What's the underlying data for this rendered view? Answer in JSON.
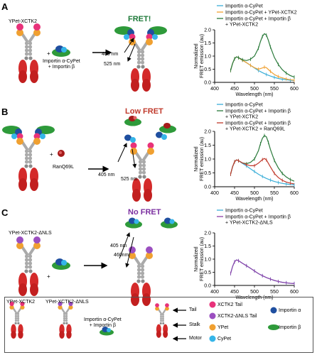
{
  "panels": {
    "A": {
      "letter": "A",
      "construct": "YPet-XCTK2",
      "protein": "Importin α-CyPet\n+ Importin β",
      "plus": "+",
      "title": "FRET!",
      "title_color": "#1f7a3a",
      "ex": "405 nm",
      "em": "525 nm"
    },
    "B": {
      "letter": "B",
      "plus": "+",
      "ran": "RanQ69L",
      "title": "Low FRET",
      "title_color": "#c0392b",
      "ex": "405 nm",
      "em": "525 nm"
    },
    "C": {
      "letter": "C",
      "construct": "YPet-XCTK2-ΔNLS",
      "plus": "+",
      "title": "No FRET",
      "title_color": "#7b2fa0",
      "ex": "405 nm",
      "em": "460nm"
    }
  },
  "key": {
    "col1": "YPet-XCTK2",
    "col2": "YPet-XCTK2-ΔNLS",
    "protein": "Importin α-CyPet\n+ Importin β",
    "parts": [
      "Tail",
      "Stalk",
      "Motor"
    ],
    "items": [
      {
        "label": "XCTK2 Tail",
        "color": "#e8327a"
      },
      {
        "label": "XCTK2-ΔNLS Tail",
        "color": "#9b4fc0"
      },
      {
        "label": "YPet",
        "color": "#f0a030"
      },
      {
        "label": "CyPet",
        "color": "#35b5e8"
      },
      {
        "label": "Importin α",
        "color": "#1f4fa0"
      },
      {
        "label": "Importin β",
        "color": "#2e9a3a"
      }
    ]
  },
  "chart_data": [
    {
      "type": "line",
      "xlabel": "Wavelength (nm)",
      "ylabel": "Normalized\nFRET emission (au)",
      "xlim": [
        400,
        600
      ],
      "ylim": [
        0,
        2
      ],
      "xticks": [
        400,
        450,
        500,
        550,
        600
      ],
      "yticks": [
        0.0,
        0.5,
        1.0,
        1.5,
        2.0
      ],
      "ytick_labels": [
        "0.0",
        "0.5",
        "1.0",
        "1.5",
        "2.0"
      ],
      "legend": [
        "Importin α-CyPet",
        "Importin α-CyPet + YPet-XCTK2",
        "Importin α-CyPet + Importin β\n+ YPet-XCTK2"
      ],
      "series": [
        {
          "name": "Importin α-CyPet",
          "color": "#3aaed8",
          "x": [
            440,
            445,
            450,
            455,
            460,
            465,
            470,
            480,
            490,
            500,
            510,
            520,
            530,
            540,
            550,
            560,
            570,
            580,
            590,
            600
          ],
          "y": [
            0.45,
            0.72,
            0.9,
            0.97,
            0.94,
            0.88,
            0.84,
            0.75,
            0.65,
            0.55,
            0.45,
            0.37,
            0.3,
            0.24,
            0.19,
            0.15,
            0.12,
            0.1,
            0.08,
            0.07
          ]
        },
        {
          "name": "Importin α-CyPet + YPet-XCTK2",
          "color": "#f0a030",
          "x": [
            440,
            445,
            450,
            455,
            460,
            465,
            470,
            480,
            490,
            500,
            510,
            520,
            525,
            530,
            540,
            550,
            560,
            570,
            580,
            590,
            600
          ],
          "y": [
            0.45,
            0.72,
            0.9,
            0.97,
            0.94,
            0.88,
            0.84,
            0.75,
            0.65,
            0.56,
            0.5,
            0.55,
            0.58,
            0.56,
            0.42,
            0.3,
            0.22,
            0.17,
            0.13,
            0.1,
            0.08
          ]
        },
        {
          "name": "Importin α-CyPet + Importin β\n+ YPet-XCTK2",
          "color": "#2a7a3a",
          "x": [
            440,
            445,
            450,
            455,
            460,
            465,
            470,
            480,
            490,
            500,
            510,
            515,
            520,
            525,
            530,
            535,
            540,
            550,
            560,
            570,
            580,
            590,
            600
          ],
          "y": [
            0.45,
            0.72,
            0.9,
            0.97,
            0.94,
            0.9,
            0.86,
            0.83,
            0.88,
            1.0,
            1.3,
            1.55,
            1.75,
            1.85,
            1.8,
            1.6,
            1.35,
            0.95,
            0.68,
            0.48,
            0.35,
            0.26,
            0.2
          ]
        }
      ]
    },
    {
      "type": "line",
      "xlabel": "Wavelength (nm)",
      "ylabel": "Normalized\nFRET emission (au)",
      "xlim": [
        400,
        600
      ],
      "ylim": [
        0,
        2
      ],
      "xticks": [
        400,
        450,
        500,
        550,
        600
      ],
      "yticks": [
        0.0,
        0.5,
        1.0,
        1.5,
        2.0
      ],
      "ytick_labels": [
        "0.0",
        "0.5",
        "1.0",
        "1.5",
        "2.0"
      ],
      "legend": [
        "Importin α-CyPet",
        "Importin α-CyPet + Importin β\n+ YPet-XCTK2",
        "Importin α-CyPet + Importin β\n+ YPet-XCTK2 + RanQ69L"
      ],
      "series": [
        {
          "name": "Importin α-CyPet",
          "color": "#3aaed8",
          "x": [
            440,
            445,
            450,
            455,
            460,
            470,
            480,
            490,
            500,
            510,
            520,
            530,
            540,
            550,
            560,
            570,
            580,
            590,
            600
          ],
          "y": [
            0.45,
            0.72,
            0.9,
            0.97,
            0.94,
            0.84,
            0.75,
            0.65,
            0.55,
            0.45,
            0.37,
            0.3,
            0.24,
            0.19,
            0.15,
            0.12,
            0.1,
            0.08,
            0.07
          ]
        },
        {
          "name": "Importin α-CyPet + Importin β\n+ YPet-XCTK2",
          "color": "#2a7a3a",
          "x": [
            440,
            445,
            450,
            455,
            460,
            470,
            480,
            490,
            500,
            510,
            515,
            520,
            525,
            530,
            535,
            540,
            550,
            560,
            570,
            580,
            590,
            600
          ],
          "y": [
            0.45,
            0.72,
            0.9,
            0.97,
            0.94,
            0.86,
            0.83,
            0.88,
            1.0,
            1.3,
            1.55,
            1.75,
            1.85,
            1.8,
            1.6,
            1.35,
            0.95,
            0.68,
            0.48,
            0.35,
            0.26,
            0.2
          ]
        },
        {
          "name": "Importin α-CyPet + Importin β\n+ YPet-XCTK2 + RanQ69L",
          "color": "#c0392b",
          "x": [
            440,
            445,
            450,
            455,
            460,
            470,
            480,
            490,
            500,
            510,
            520,
            525,
            530,
            540,
            550,
            560,
            570,
            580,
            590,
            600
          ],
          "y": [
            0.45,
            0.72,
            0.9,
            0.97,
            0.94,
            0.86,
            0.8,
            0.76,
            0.76,
            0.85,
            0.98,
            1.02,
            0.97,
            0.72,
            0.48,
            0.33,
            0.23,
            0.17,
            0.13,
            0.1
          ]
        }
      ]
    },
    {
      "type": "line",
      "xlabel": "Wavelength (nm)",
      "ylabel": "Normalized\nFRET emission (au)",
      "xlim": [
        400,
        600
      ],
      "ylim": [
        0,
        2
      ],
      "xticks": [
        400,
        450,
        500,
        550,
        600
      ],
      "yticks": [
        0.0,
        0.5,
        1.0,
        1.5,
        2.0
      ],
      "ytick_labels": [
        "0.0",
        "0.5",
        "1.0",
        "1.5",
        "2.0"
      ],
      "legend": [
        "Importin α-CyPet",
        "Importin α-CyPet + Importin β\n+ YPet-XCTK2-ΔNLS"
      ],
      "series": [
        {
          "name": "Importin α-CyPet",
          "color": "#3aaed8",
          "x": [
            440,
            445,
            450,
            455,
            460,
            470,
            480,
            490,
            500,
            510,
            520,
            530,
            540,
            550,
            560,
            570,
            580,
            590,
            600
          ],
          "y": [
            0.45,
            0.72,
            0.9,
            0.97,
            0.94,
            0.84,
            0.75,
            0.65,
            0.55,
            0.45,
            0.37,
            0.3,
            0.24,
            0.19,
            0.15,
            0.12,
            0.1,
            0.08,
            0.07
          ]
        },
        {
          "name": "Importin α-CyPet + Importin β\n+ YPet-XCTK2-ΔNLS",
          "color": "#8e3fa8",
          "x": [
            440,
            445,
            450,
            455,
            460,
            470,
            480,
            490,
            500,
            510,
            520,
            530,
            540,
            550,
            560,
            570,
            580,
            590,
            600
          ],
          "y": [
            0.45,
            0.72,
            0.9,
            0.97,
            0.94,
            0.84,
            0.75,
            0.65,
            0.55,
            0.45,
            0.37,
            0.3,
            0.24,
            0.19,
            0.15,
            0.12,
            0.1,
            0.08,
            0.07
          ]
        }
      ]
    }
  ]
}
